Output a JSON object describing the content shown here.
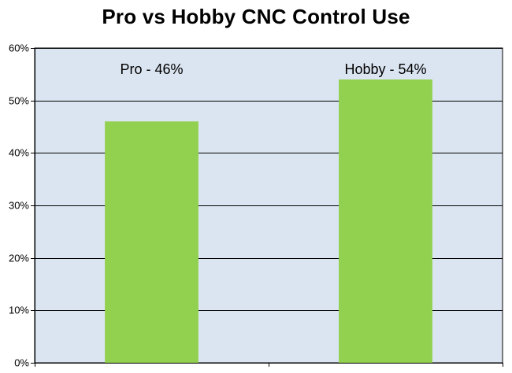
{
  "chart_data": {
    "type": "bar",
    "title": "Pro vs Hobby CNC Control Use",
    "categories": [
      "Pro",
      "Hobby"
    ],
    "values": [
      46,
      54
    ],
    "value_format": "percent",
    "data_labels": [
      "Pro - 46%",
      "Hobby - 54%"
    ],
    "xlabel": "",
    "ylabel": "",
    "ylim": [
      0,
      60
    ],
    "yticks": [
      0,
      10,
      20,
      30,
      40,
      50,
      60
    ],
    "ytick_labels": [
      "0%",
      "10%",
      "20%",
      "30%",
      "40%",
      "50%",
      "60%"
    ],
    "grid": true,
    "legend": "none",
    "colors": {
      "bar": "#92d050",
      "plot_background": "#dbe5f1",
      "gridline": "#000000",
      "axis": "#000000"
    }
  }
}
